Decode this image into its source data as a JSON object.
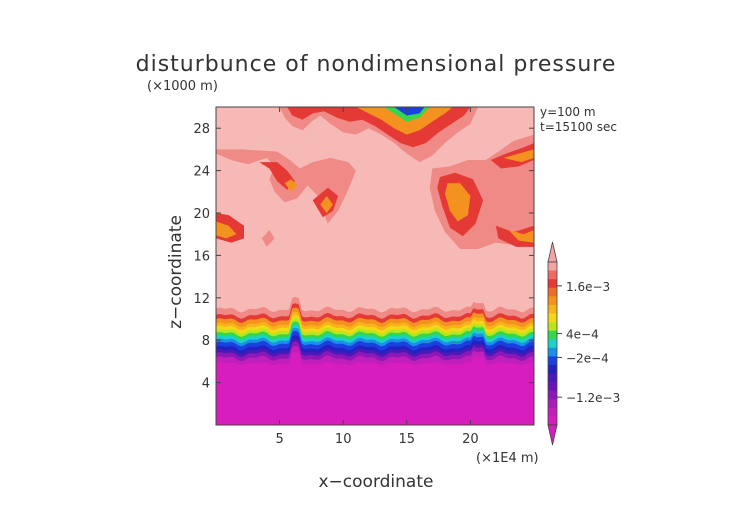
{
  "chart_data": {
    "type": "heatmap",
    "title": "disturbunce of nondimensional pressure",
    "z_unit": "(×1000 m)",
    "x_unit": "(×1E4 m)",
    "xlabel": "x−coordinate",
    "ylabel": "z−coordinate",
    "annotations": [
      "y=100 m",
      "t=15100 sec"
    ],
    "xlim": [
      0,
      25
    ],
    "ylim": [
      0,
      30
    ],
    "x_ticks": [
      5,
      10,
      15,
      20
    ],
    "y_ticks": [
      4,
      8,
      12,
      16,
      20,
      24,
      28
    ],
    "x_tick_labels": [
      "5",
      "10",
      "15",
      "20"
    ],
    "y_tick_labels": [
      "4",
      "8",
      "12",
      "16",
      "20",
      "24",
      "28"
    ],
    "colorbar": {
      "levels": [
        "1.6e−3",
        "4e−4",
        "−2e−4",
        "−1.2e−3"
      ],
      "level_values": [
        0.0016,
        0.0004,
        -0.0002,
        -0.0012
      ],
      "vmin": -0.0019,
      "vmax": 0.0022,
      "colors_top_to_bottom": [
        "#f5a3a3",
        "#ee6a63",
        "#e53935",
        "#f06a2a",
        "#f4921f",
        "#f8b21b",
        "#f3d817",
        "#b8e61e",
        "#34d64e",
        "#19d3c9",
        "#1b8fe8",
        "#1c3fe0",
        "#2222c0",
        "#4a19b8",
        "#6a14b6",
        "#8c18b8",
        "#a81cba",
        "#c11fbb",
        "#d81dbf"
      ]
    },
    "regions": {
      "upper_background_value": 0.0016,
      "lower_background_value": -0.0019,
      "transition_band_z": [
        6.6,
        10.8
      ]
    }
  }
}
